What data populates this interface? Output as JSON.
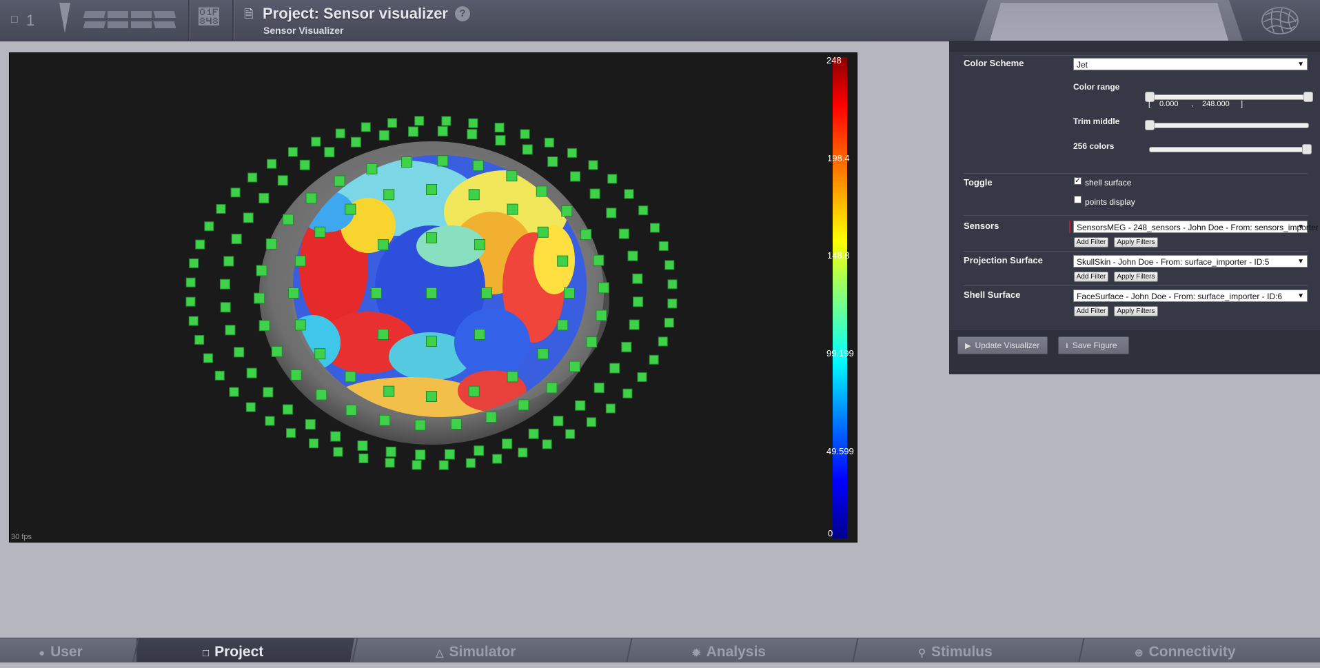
{
  "topbar": {
    "project_count": "1",
    "project_title": "Project: Sensor visualizer",
    "help": "?",
    "subtitle": "Sensor Visualizer"
  },
  "viewer": {
    "fps": "30 fps",
    "colorbar": {
      "scheme": "jet",
      "ticks": [
        "248",
        "198.4",
        "148.8",
        "99.199",
        "49.599",
        "0"
      ]
    }
  },
  "panel": {
    "color_scheme_label": "Color Scheme",
    "color_scheme_value": "Jet",
    "color_range_label": "Color range",
    "color_range_open": "[",
    "color_range_min": "0.000",
    "color_range_sep": ",",
    "color_range_max": "248.000",
    "color_range_close": "]",
    "trim_middle_label": "Trim middle",
    "colors_label": "256 colors",
    "toggle_label": "Toggle",
    "shell_surface_label": "shell surface",
    "shell_surface_checked": true,
    "points_display_label": "points display",
    "points_display_checked": false,
    "sensors_label": "Sensors",
    "sensors_value": "SensorsMEG - 248_sensors - John Doe - From: sensors_importer",
    "projection_label": "Projection Surface",
    "projection_value": "SkullSkin - John Doe - From: surface_importer - ID:5",
    "shell_label": "Shell Surface",
    "shell_value": "FaceSurface - John Doe - From: surface_importer - ID:6",
    "add_filter": "Add Filter",
    "apply_filters": "Apply Filters",
    "update_button": "Update Visualizer",
    "save_button": "Save Figure"
  },
  "bottom_tabs": [
    {
      "label": "User",
      "icon": "user-icon"
    },
    {
      "label": "Project",
      "icon": "document-icon",
      "active": true
    },
    {
      "label": "Simulator",
      "icon": "flask-icon"
    },
    {
      "label": "Analysis",
      "icon": "gear-icon"
    },
    {
      "label": "Stimulus",
      "icon": "pin-icon"
    },
    {
      "label": "Connectivity",
      "icon": "network-icon"
    }
  ],
  "colors": {
    "sensor": "#3fd14a",
    "topbar": "#4b4e5c",
    "panel": "#363945"
  }
}
